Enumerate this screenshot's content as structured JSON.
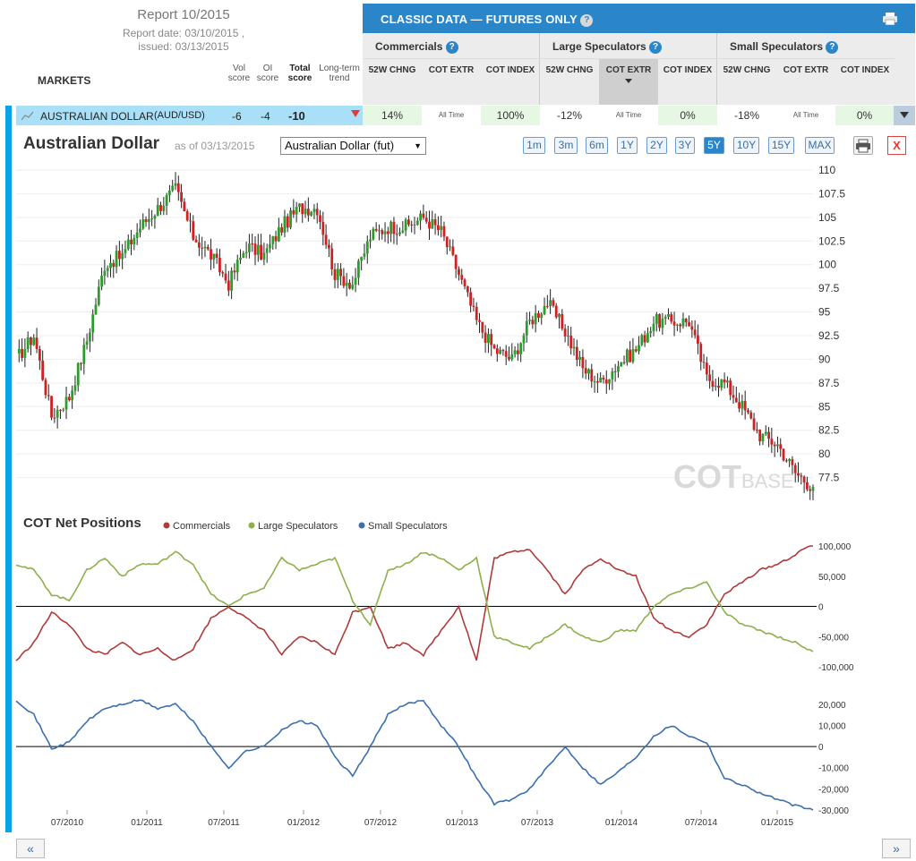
{
  "report": {
    "title": "Report 10/2015",
    "report_date": "Report date: 03/10/2015 ,",
    "issued": "issued: 03/13/2015"
  },
  "markets_label": "MARKETS",
  "score_headers": {
    "vol": "Vol score",
    "oi": "OI score",
    "total": "Total score",
    "trend": "Long-term trend"
  },
  "classic": {
    "title": "CLASSIC DATA — FUTURES ONLY",
    "groups": [
      {
        "name": "Commercials",
        "subs": [
          "52W CHNG",
          "COT EXTR",
          "COT INDEX"
        ]
      },
      {
        "name": "Large Speculators",
        "subs": [
          "52W CHNG",
          "COT EXTR",
          "COT INDEX"
        ]
      },
      {
        "name": "Small Speculators",
        "subs": [
          "52W CHNG",
          "COT EXTR",
          "COT INDEX"
        ]
      }
    ]
  },
  "market_row": {
    "name": "AUSTRALIAN DOLLAR",
    "symbol": "(AUD/USD)",
    "vol": "-6",
    "oi": "-4",
    "total": "-10",
    "trend": "down",
    "cells": [
      "14%",
      "All Time",
      "100%",
      "-12%",
      "All Time",
      "0%",
      "-18%",
      "All Time",
      "0%"
    ]
  },
  "chart_header": {
    "title": "Australian Dollar",
    "asof": "as of 03/13/2015",
    "selected_contract": "Australian Dollar (fut)",
    "ranges": [
      "1m",
      "3m",
      "6m",
      "1Y",
      "2Y",
      "3Y",
      "5Y",
      "10Y",
      "15Y",
      "MAX"
    ],
    "active_range": "5Y",
    "close_label": "X"
  },
  "watermark": "COTBASE",
  "cot_legend": {
    "title": "COT Net Positions",
    "items": [
      "Commercials",
      "Large Speculators",
      "Small Speculators"
    ]
  },
  "colors": {
    "commercials": "#b03a3a",
    "large_speculators": "#8db04a",
    "small_speculators": "#3b6fae",
    "candle_up": "#2a9d2a",
    "candle_down": "#d02020",
    "accent": "#2a86c9"
  },
  "chart_data": [
    {
      "type": "candlestick",
      "title": "Australian Dollar",
      "ylim": [
        75,
        110
      ],
      "y_ticks": [
        "110",
        "107.5",
        "105",
        "102.5",
        "100",
        "97.5",
        "95",
        "92.5",
        "90",
        "87.5",
        "85",
        "82.5",
        "80",
        "77.5"
      ],
      "x": [
        "03/2010",
        "05/2010",
        "06/2010",
        "08/2010",
        "10/2010",
        "12/2010",
        "02/2011",
        "04/2011",
        "05/2011",
        "07/2011",
        "08/2011",
        "09/2011",
        "10/2011",
        "11/2011",
        "12/2011",
        "01/2012",
        "02/2012",
        "04/2012",
        "05/2012",
        "06/2012",
        "08/2012",
        "10/2012",
        "12/2012",
        "02/2013",
        "04/2013",
        "05/2013",
        "06/2013",
        "07/2013",
        "08/2013",
        "09/2013",
        "10/2013",
        "11/2013",
        "12/2013",
        "01/2014",
        "02/2014",
        "03/2014",
        "05/2014",
        "07/2014",
        "08/2014",
        "09/2014",
        "10/2014",
        "11/2014",
        "12/2014",
        "01/2015",
        "02/2015",
        "03/2015"
      ],
      "values": [
        90,
        92.5,
        84,
        86,
        92,
        100,
        101,
        104,
        106,
        108,
        103,
        101,
        98,
        102,
        101,
        104,
        106,
        106,
        99,
        98,
        103,
        104,
        104,
        105,
        103.5,
        99,
        94,
        91,
        90,
        94,
        96,
        93,
        89,
        87.5,
        89.5,
        91,
        94,
        94,
        94,
        88,
        87.5,
        85,
        82,
        81,
        78,
        76.5
      ]
    },
    {
      "type": "line",
      "title": "COT Net Positions",
      "ylim": [
        -100000,
        100000
      ],
      "y_ticks": [
        "100,000",
        "50,000",
        "0",
        "-50,000",
        "-100,000"
      ],
      "x": [
        "03/2010",
        "05/2010",
        "06/2010",
        "08/2010",
        "10/2010",
        "12/2010",
        "02/2011",
        "04/2011",
        "05/2011",
        "07/2011",
        "08/2011",
        "09/2011",
        "10/2011",
        "11/2011",
        "12/2011",
        "01/2012",
        "02/2012",
        "04/2012",
        "05/2012",
        "06/2012",
        "08/2012",
        "10/2012",
        "12/2012",
        "02/2013",
        "04/2013",
        "05/2013",
        "06/2013",
        "07/2013",
        "08/2013",
        "09/2013",
        "10/2013",
        "11/2013",
        "12/2013",
        "01/2014",
        "02/2014",
        "03/2014",
        "05/2014",
        "07/2014",
        "08/2014",
        "09/2014",
        "10/2014",
        "11/2014",
        "12/2014",
        "01/2015",
        "02/2015",
        "03/2015"
      ],
      "series": [
        {
          "name": "Commercials",
          "values": [
            -90000,
            -60000,
            -10000,
            -30000,
            -70000,
            -80000,
            -60000,
            -80000,
            -70000,
            -90000,
            -70000,
            -20000,
            0,
            -20000,
            -40000,
            -80000,
            -50000,
            -60000,
            -80000,
            -10000,
            0,
            -70000,
            -60000,
            -80000,
            -40000,
            0,
            -90000,
            80000,
            90000,
            95000,
            60000,
            20000,
            60000,
            80000,
            60000,
            50000,
            -20000,
            -40000,
            -50000,
            -30000,
            20000,
            40000,
            60000,
            70000,
            85000,
            105000
          ]
        },
        {
          "name": "Large Speculators",
          "values": [
            70000,
            60000,
            20000,
            10000,
            60000,
            80000,
            50000,
            70000,
            70000,
            90000,
            70000,
            20000,
            0,
            20000,
            30000,
            80000,
            60000,
            70000,
            80000,
            10000,
            -30000,
            60000,
            70000,
            90000,
            80000,
            60000,
            80000,
            -50000,
            -60000,
            -70000,
            -50000,
            -30000,
            -50000,
            -60000,
            -40000,
            -40000,
            0,
            20000,
            30000,
            40000,
            -10000,
            -30000,
            -40000,
            -50000,
            -60000,
            -75000
          ]
        }
      ]
    },
    {
      "type": "line",
      "ylim": [
        -30000,
        25000
      ],
      "y_ticks": [
        "20,000",
        "10,000",
        "0",
        "-10,000",
        "-20,000",
        "-30,000"
      ],
      "x": [
        "03/2010",
        "05/2010",
        "06/2010",
        "08/2010",
        "10/2010",
        "12/2010",
        "02/2011",
        "04/2011",
        "05/2011",
        "07/2011",
        "08/2011",
        "09/2011",
        "10/2011",
        "11/2011",
        "12/2011",
        "01/2012",
        "02/2012",
        "04/2012",
        "05/2012",
        "06/2012",
        "08/2012",
        "10/2012",
        "12/2012",
        "02/2013",
        "04/2013",
        "05/2013",
        "06/2013",
        "07/2013",
        "08/2013",
        "09/2013",
        "10/2013",
        "11/2013",
        "12/2013",
        "01/2014",
        "02/2014",
        "03/2014",
        "05/2014",
        "07/2014",
        "08/2014",
        "09/2014",
        "10/2014",
        "11/2014",
        "12/2014",
        "01/2015",
        "02/2015",
        "03/2015"
      ],
      "series": [
        {
          "name": "Small Speculators",
          "values": [
            22000,
            15000,
            -1000,
            2000,
            12000,
            18000,
            20000,
            22000,
            18000,
            20000,
            12000,
            0,
            -10000,
            -2000,
            0,
            8000,
            12000,
            10000,
            -5000,
            -14000,
            0,
            15000,
            20000,
            22000,
            10000,
            0,
            -15000,
            -27000,
            -25000,
            -20000,
            -10000,
            0,
            -10000,
            -18000,
            -12000,
            -5000,
            5000,
            10000,
            5000,
            2000,
            -15000,
            -18000,
            -22000,
            -25000,
            -28000,
            -30000
          ]
        }
      ]
    }
  ],
  "x_axis_labels": [
    "07/2010",
    "01/2011",
    "07/2011",
    "01/2012",
    "07/2012",
    "01/2013",
    "07/2013",
    "01/2014",
    "07/2014",
    "01/2015"
  ],
  "nav": {
    "prev": "«",
    "next": "»"
  }
}
